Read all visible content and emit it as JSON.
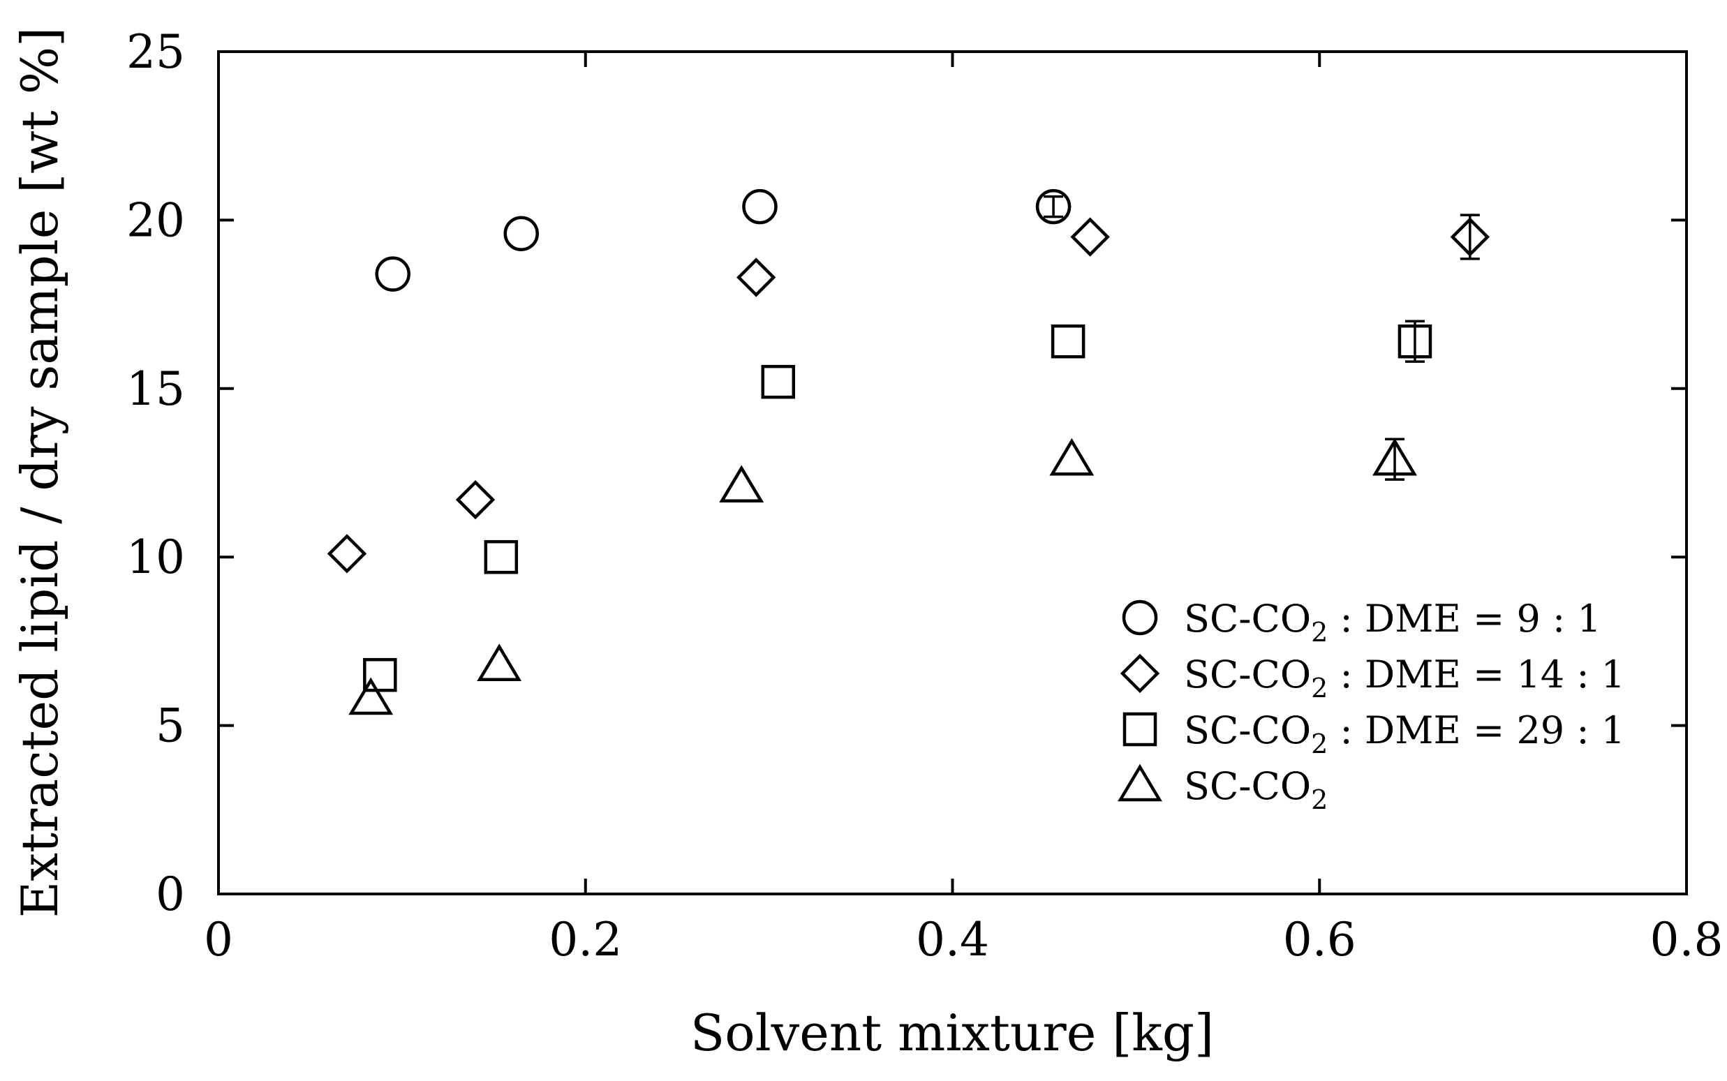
{
  "chart_data": {
    "type": "scatter",
    "title": "",
    "xlabel": "Solvent mixture [kg]",
    "ylabel": "Extracted lipid / dry sample [wt %]",
    "xlim": [
      0,
      0.8
    ],
    "ylim": [
      0,
      25
    ],
    "xticks": [
      0,
      0.2,
      0.4,
      0.6,
      0.8
    ],
    "xtick_labels": [
      "0",
      "0.2",
      "0.4",
      "0.6",
      "0.8"
    ],
    "yticks": [
      0,
      5,
      10,
      15,
      20,
      25
    ],
    "ytick_labels": [
      "0",
      "5",
      "10",
      "15",
      "20",
      "25"
    ],
    "grid": false,
    "legend_position": "bottom-right",
    "series": [
      {
        "name_parts": [
          "SC-CO",
          "2",
          " : DME = 9 : 1"
        ],
        "marker": "circle",
        "x": [
          0.095,
          0.165,
          0.295,
          0.455
        ],
        "y": [
          18.4,
          19.6,
          20.4,
          20.4
        ],
        "err": [
          0,
          0,
          0,
          0.3
        ]
      },
      {
        "name_parts": [
          "SC-CO",
          "2",
          " : DME = 14 : 1"
        ],
        "marker": "diamond",
        "x": [
          0.07,
          0.14,
          0.293,
          0.475,
          0.682
        ],
        "y": [
          10.1,
          11.7,
          18.3,
          19.5,
          19.5
        ],
        "err": [
          0,
          0,
          0,
          0,
          0.65
        ]
      },
      {
        "name_parts": [
          "SC-CO",
          "2",
          " : DME = 29 : 1"
        ],
        "marker": "square",
        "x": [
          0.088,
          0.154,
          0.305,
          0.463,
          0.652
        ],
        "y": [
          6.5,
          10.0,
          15.2,
          16.4,
          16.4
        ],
        "err": [
          0,
          0,
          0,
          0,
          0.6
        ]
      },
      {
        "name_parts": [
          "SC-CO",
          "2",
          ""
        ],
        "marker": "triangle",
        "x": [
          0.083,
          0.153,
          0.285,
          0.465,
          0.641
        ],
        "y": [
          5.8,
          6.8,
          12.1,
          12.9,
          12.9
        ],
        "err": [
          0,
          0,
          0,
          0,
          0.6
        ]
      }
    ]
  }
}
